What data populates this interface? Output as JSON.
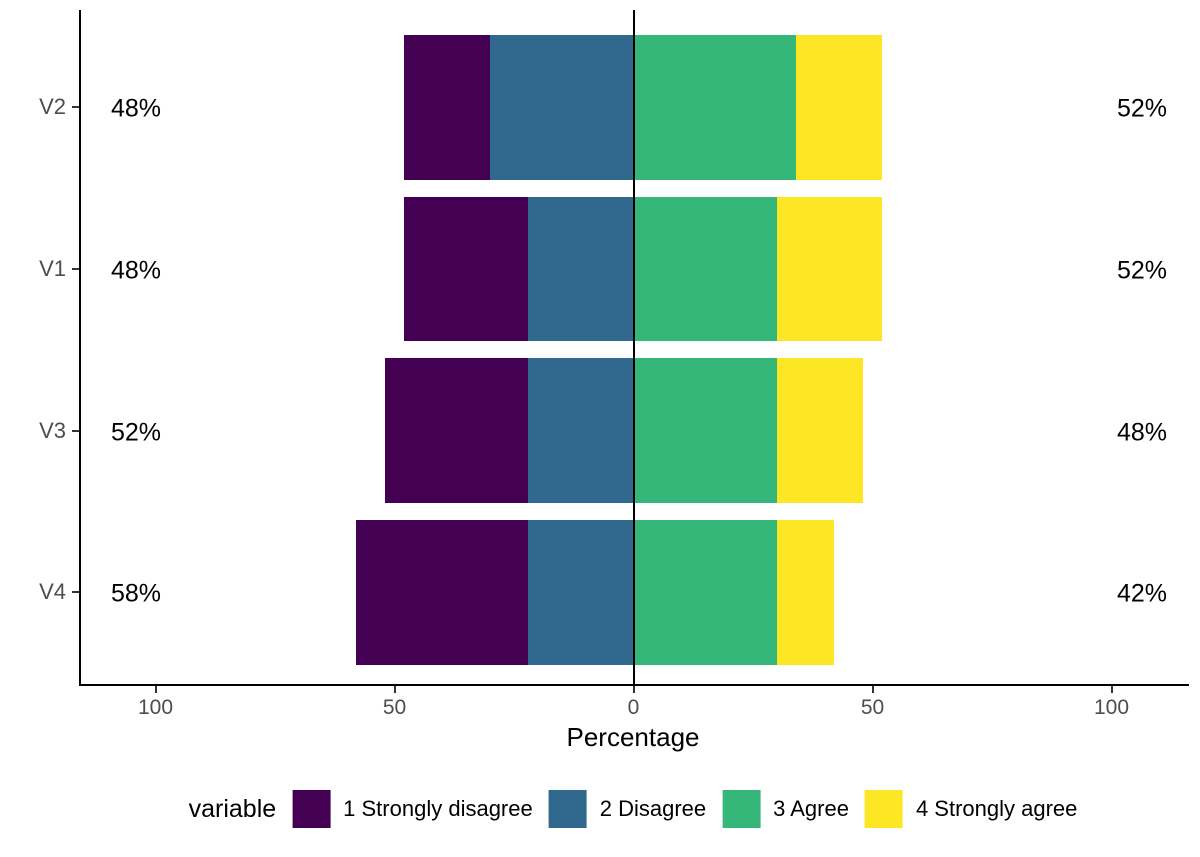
{
  "chart_data": {
    "type": "bar",
    "variant": "diverging-stacked-horizontal-likert",
    "title": "",
    "xlabel": "Percentage",
    "ylabel": "",
    "legend_title": "variable",
    "legend_position": "bottom",
    "grid": false,
    "categories": [
      "V2",
      "V1",
      "V3",
      "V4"
    ],
    "series": [
      {
        "name": "1 Strongly disagree",
        "color": "#440154",
        "side": "negative",
        "values": [
          18,
          26,
          30,
          36
        ]
      },
      {
        "name": "2 Disagree",
        "color": "#31688E",
        "side": "negative",
        "values": [
          30,
          22,
          22,
          22
        ]
      },
      {
        "name": "3 Agree",
        "color": "#35B779",
        "side": "positive",
        "values": [
          34,
          30,
          30,
          30
        ]
      },
      {
        "name": "4 Strongly agree",
        "color": "#FDE725",
        "side": "positive",
        "values": [
          18,
          22,
          18,
          12
        ]
      }
    ],
    "left_totals": [
      "48%",
      "48%",
      "52%",
      "58%"
    ],
    "right_totals": [
      "52%",
      "52%",
      "48%",
      "42%"
    ],
    "x_ticks": [
      -100,
      -50,
      0,
      50,
      100
    ],
    "x_tick_labels": [
      "100",
      "50",
      "0",
      "50",
      "100"
    ],
    "xlim": [
      -116,
      116
    ],
    "axis_color": "#000000",
    "tick_text_color": "#4D4D4D",
    "annotation_text_color": "#000000"
  }
}
